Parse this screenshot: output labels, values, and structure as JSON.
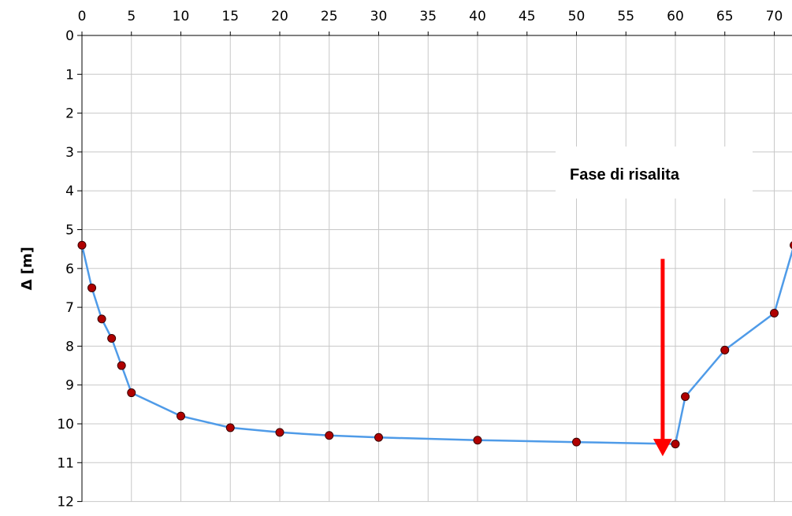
{
  "chart_data": {
    "type": "line",
    "title": "",
    "xlabel": "",
    "ylabel": "Δ [m]",
    "xlim": [
      0,
      72
    ],
    "ylim": [
      0,
      12
    ],
    "y_inverted": true,
    "x_axis_position": "top",
    "grid": true,
    "x_ticks": [
      "0",
      "5",
      "10",
      "15",
      "20",
      "25",
      "30",
      "35",
      "40",
      "45",
      "50",
      "55",
      "60",
      "65",
      "70"
    ],
    "y_ticks": [
      "0",
      "1",
      "2",
      "3",
      "4",
      "5",
      "6",
      "7",
      "8",
      "9",
      "10",
      "11",
      "12"
    ],
    "series": [
      {
        "color": "#4f9be8",
        "marker_color": "#b00000",
        "x": [
          0,
          1,
          2,
          3,
          4,
          5,
          10,
          15,
          20,
          25,
          30,
          40,
          50,
          60,
          61,
          65,
          70,
          72
        ],
        "y": [
          5.4,
          6.5,
          7.3,
          7.8,
          8.5,
          9.2,
          9.8,
          10.1,
          10.22,
          10.3,
          10.35,
          10.42,
          10.47,
          10.52,
          9.3,
          8.1,
          7.15,
          5.4
        ]
      }
    ],
    "annotation": {
      "text": "Fase di risalita",
      "arrow_color": "#ff0000",
      "arrow_x": 58,
      "arrow_y_start": 4.8,
      "arrow_y_end": 9.9
    }
  }
}
